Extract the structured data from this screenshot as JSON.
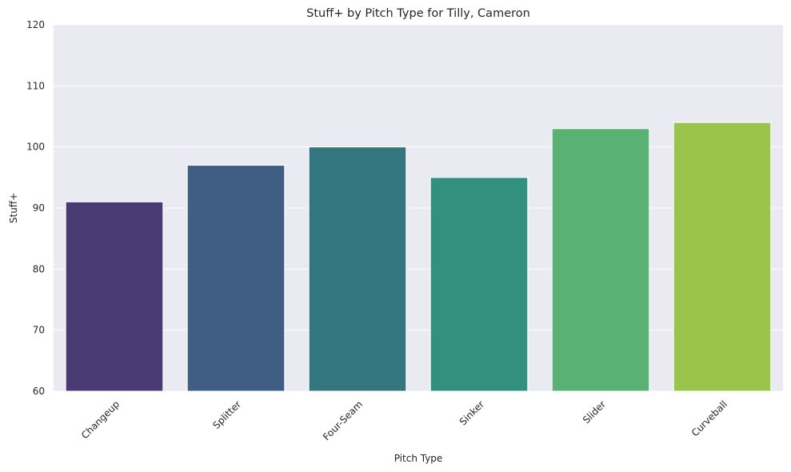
{
  "chart_data": {
    "type": "bar",
    "title": "Stuff+ by Pitch Type for Tilly, Cameron",
    "xlabel": "Pitch Type",
    "ylabel": "Stuff+",
    "categories": [
      "Changeup",
      "Splitter",
      "Four-Seam",
      "Sinker",
      "Slider",
      "Curveball"
    ],
    "values": [
      91,
      97,
      100,
      95,
      103,
      104
    ],
    "ylim": [
      60,
      120
    ],
    "yticks": [
      60,
      70,
      80,
      90,
      100,
      110,
      120
    ],
    "colors": [
      "#4a3a74",
      "#405e83",
      "#34767f",
      "#31917e",
      "#5ab174",
      "#9ac54c"
    ],
    "grid": true,
    "background": "#eaeaf2",
    "xtick_rotation": 45
  }
}
